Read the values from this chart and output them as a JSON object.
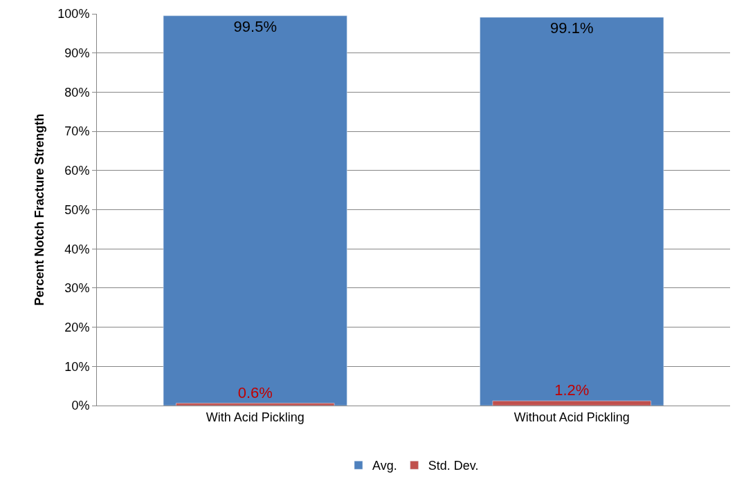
{
  "chart_data": {
    "type": "bar",
    "ylabel": "Percent Notch Fracture Strength",
    "categories": [
      "With Acid Pickling",
      "Without Acid Pickling"
    ],
    "series": [
      {
        "name": "Avg.",
        "color": "#4f81bd",
        "values": [
          99.5,
          99.1
        ],
        "value_labels": [
          "99.5%",
          "99.1%"
        ]
      },
      {
        "name": "Std. Dev.",
        "color": "#c0504d",
        "values": [
          0.6,
          1.2
        ],
        "value_labels": [
          "0.6%",
          "1.2%"
        ]
      }
    ],
    "ylim": [
      0,
      100
    ],
    "yticks": [
      {
        "value": 0,
        "label": "0%"
      },
      {
        "value": 10,
        "label": "10%"
      },
      {
        "value": 20,
        "label": "20%"
      },
      {
        "value": 30,
        "label": "30%"
      },
      {
        "value": 40,
        "label": "40%"
      },
      {
        "value": 50,
        "label": "50%"
      },
      {
        "value": 60,
        "label": "60%"
      },
      {
        "value": 70,
        "label": "70%"
      },
      {
        "value": 80,
        "label": "80%"
      },
      {
        "value": 90,
        "label": "90%"
      },
      {
        "value": 100,
        "label": "100%"
      }
    ],
    "grid": "y",
    "legend": "bottom"
  }
}
